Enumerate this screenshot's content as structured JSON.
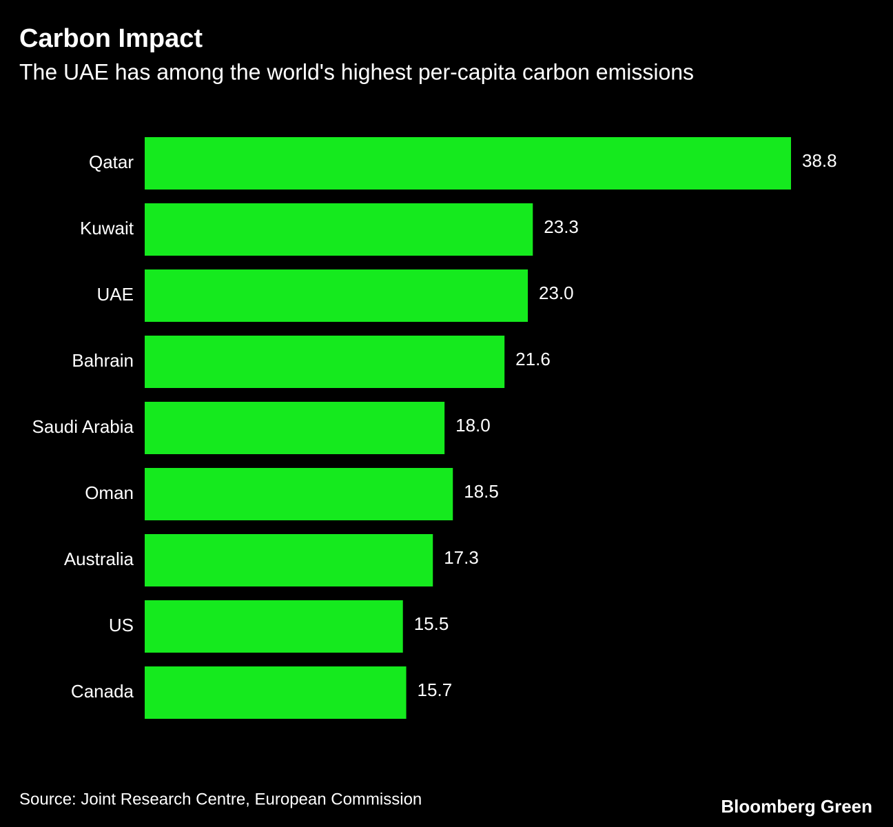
{
  "chart_data": {
    "type": "bar",
    "orientation": "horizontal",
    "title": "Carbon Impact",
    "subtitle": "The UAE has among the world's highest per-capita carbon emissions",
    "categories": [
      "Qatar",
      "Kuwait",
      "UAE",
      "Bahrain",
      "Saudi Arabia",
      "Oman",
      "Australia",
      "US",
      "Canada"
    ],
    "values": [
      38.8,
      23.3,
      23.0,
      21.6,
      18.0,
      18.5,
      17.3,
      15.5,
      15.7
    ],
    "value_labels": [
      "38.8",
      "23.3",
      "23.0",
      "21.6",
      "18.0",
      "18.5",
      "17.3",
      "15.5",
      "15.7"
    ],
    "color": "#15ea1e",
    "source": "Source: Joint Research Centre, European Commission",
    "brand": "Bloomberg Green"
  }
}
